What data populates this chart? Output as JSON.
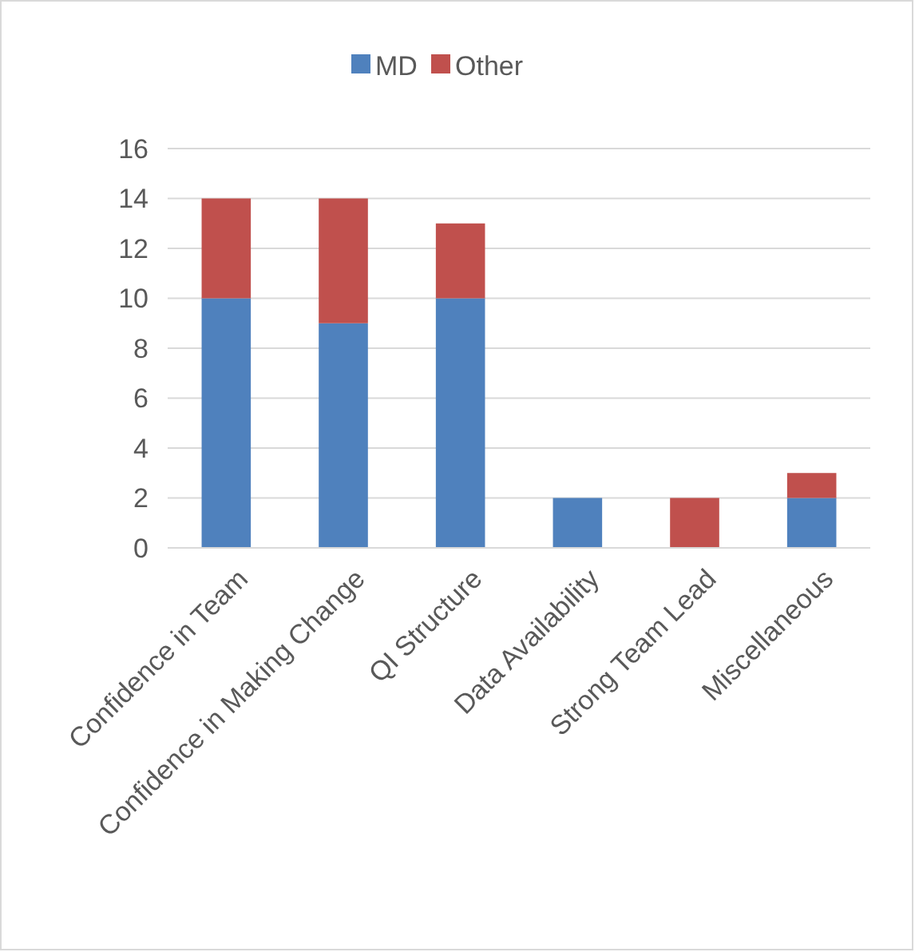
{
  "chart_data": {
    "type": "bar",
    "stacked": true,
    "categories": [
      "Confidence in Team",
      "Confidence in Making Change",
      "QI Structure",
      "Data Availability",
      "Strong Team Lead",
      "Miscellaneous"
    ],
    "series": [
      {
        "name": "MD",
        "color": "#4f81bd",
        "values": [
          10,
          9,
          10,
          2,
          0,
          2
        ]
      },
      {
        "name": "Other",
        "color": "#c0504d",
        "values": [
          4,
          5,
          3,
          0,
          2,
          1
        ]
      }
    ],
    "ylim": [
      0,
      16
    ],
    "yticks": [
      0,
      2,
      4,
      6,
      8,
      10,
      12,
      14,
      16
    ],
    "grid": "y",
    "legend": "top"
  }
}
